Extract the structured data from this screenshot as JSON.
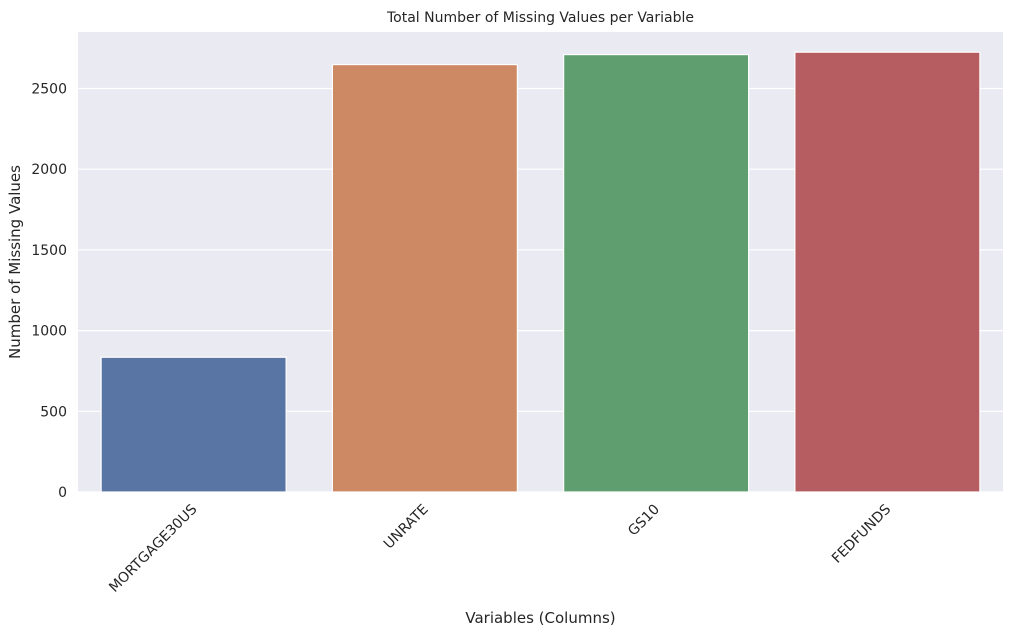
{
  "chart_data": {
    "type": "bar",
    "title": "Total Number of Missing Values per Variable",
    "xlabel": "Variables (Columns)",
    "ylabel": "Number of Missing Values",
    "categories": [
      "MORTGAGE30US",
      "UNRATE",
      "GS10",
      "FEDFUNDS"
    ],
    "values": [
      835,
      2648,
      2710,
      2725
    ],
    "colors": [
      "#5975a4",
      "#cc8963",
      "#5f9e6e",
      "#b55d60"
    ],
    "ylim": [
      0,
      2850
    ],
    "yticks": [
      0,
      500,
      1000,
      1500,
      2000,
      2500
    ],
    "grid": true,
    "legend": "none",
    "background": "#eaeaf2",
    "grid_color": "#ffffff"
  }
}
